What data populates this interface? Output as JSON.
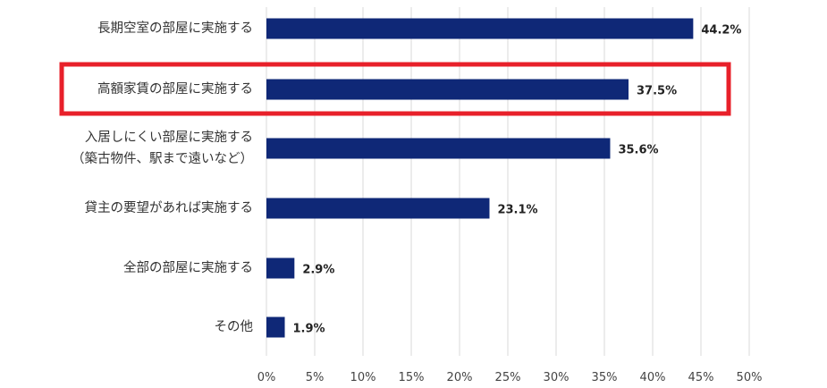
{
  "chart_data": {
    "type": "bar",
    "orientation": "horizontal",
    "categories": [
      [
        "長期空室の部屋に実施する"
      ],
      [
        "高額家賃の部屋に実施する"
      ],
      [
        "入居しにくい部屋に実施する",
        "（築古物件、駅まで遠いなど）"
      ],
      [
        "貸主の要望があれば実施する"
      ],
      [
        "全部の部屋に実施する"
      ],
      [
        "その他"
      ]
    ],
    "values": [
      44.2,
      37.5,
      35.6,
      23.1,
      2.9,
      1.9
    ],
    "value_labels": [
      "44.2%",
      "37.5%",
      "35.6%",
      "23.1%",
      "2.9%",
      "1.9%"
    ],
    "xlim": [
      0,
      50
    ],
    "x_ticks": [
      0,
      5,
      10,
      15,
      20,
      25,
      30,
      35,
      40,
      45,
      50
    ],
    "x_tick_labels": [
      "0%",
      "5%",
      "10%",
      "15%",
      "20%",
      "25%",
      "30%",
      "35%",
      "40%",
      "45%",
      "50%"
    ],
    "grid": "vertical",
    "bar_color": "#0f2877",
    "highlight": {
      "category_index": 1,
      "color": "#e8202a"
    }
  }
}
